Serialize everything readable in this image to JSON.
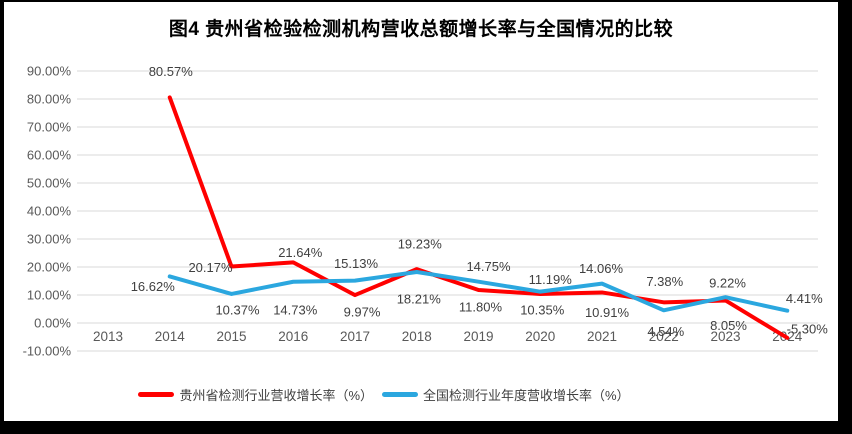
{
  "chart_data": {
    "type": "line",
    "title": "图4 贵州省检验检测机构营收总额增长率与全国情况的比较",
    "categories": [
      "2013",
      "2014",
      "2015",
      "2016",
      "2017",
      "2018",
      "2019",
      "2020",
      "2021",
      "2022",
      "2023",
      "2024"
    ],
    "series": [
      {
        "name": "贵州省检测行业营收增长率（%）",
        "color": "#FF0000",
        "values": [
          null,
          80.57,
          20.17,
          21.64,
          9.97,
          19.23,
          11.8,
          10.35,
          10.91,
          7.38,
          8.05,
          -5.3
        ],
        "labels": [
          null,
          "80.57%",
          "20.17%",
          "21.64%",
          "9.97%",
          "19.23%",
          "11.80%",
          "10.35%",
          "10.91%",
          "7.38%",
          "8.05%",
          "-5.30%"
        ],
        "label_offsets": [
          null,
          [
            1,
            -26
          ],
          [
            -21,
            1
          ],
          [
            7,
            -10
          ],
          [
            7,
            17
          ],
          [
            3,
            -25
          ],
          [
            2,
            17
          ],
          [
            2,
            16
          ],
          [
            5,
            20
          ],
          [
            1,
            -21
          ],
          [
            3,
            25
          ],
          [
            20,
            -9
          ]
        ]
      },
      {
        "name": "全国检测行业年度营收增长率（%）",
        "color": "#2BA7DF",
        "values": [
          null,
          16.62,
          10.37,
          14.73,
          15.13,
          18.21,
          14.75,
          11.19,
          14.06,
          4.54,
          9.22,
          4.41
        ],
        "labels": [
          null,
          "16.62%",
          "10.37%",
          "14.73%",
          "15.13%",
          "18.21%",
          "14.75%",
          "11.19%",
          "14.06%",
          "4.54%",
          "9.22%",
          "4.41%"
        ],
        "label_offsets": [
          null,
          [
            -17,
            10
          ],
          [
            6,
            16
          ],
          [
            2,
            28
          ],
          [
            1,
            -17
          ],
          [
            2,
            27
          ],
          [
            10,
            -15
          ],
          [
            10,
            -12
          ],
          [
            -1,
            -15
          ],
          [
            2,
            21
          ],
          [
            2,
            -14
          ],
          [
            17,
            -12
          ]
        ]
      }
    ],
    "ylim": [
      -10,
      90
    ],
    "ytick_step": 10,
    "ytick_labels": [
      "90.00%",
      "80.00%",
      "70.00%",
      "60.00%",
      "50.00%",
      "40.00%",
      "30.00%",
      "20.00%",
      "10.00%",
      "0.00%",
      "-10.00%"
    ],
    "grid": true,
    "legend_position": "bottom",
    "colors": {
      "gridline": "#D9D9D9",
      "tick_label": "#595959",
      "data_label": "#404040",
      "title": "#000000"
    }
  }
}
